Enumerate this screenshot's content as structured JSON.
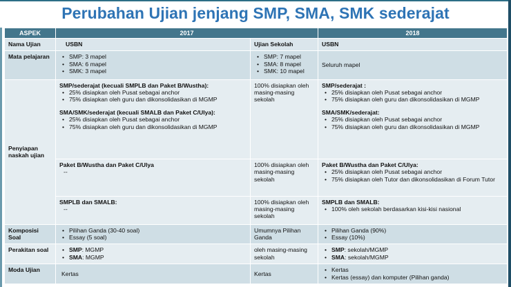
{
  "title": "Perubahan Ujian jenjang SMP, SMA, SMK sederajat",
  "header": {
    "aspek": "ASPEK",
    "y2017": "2017",
    "y2018": "2018"
  },
  "subheader": {
    "nama_ujian": "Nama Ujian",
    "usbn_2017": "USBN",
    "us_2017": "Ujian Sekolah",
    "usbn_2018": "USBN"
  },
  "mapel": {
    "label": "Mata pelajaran",
    "usbn_items": [
      "SMP: 3 mapel",
      "SMA: 6 mapel",
      "SMK: 3 mapel"
    ],
    "us_items": [
      "SMP: 7 mapel",
      "SMA: 8 mapel",
      "SMK: 10 mapel"
    ],
    "y2018": "Seluruh mapel"
  },
  "naskah": {
    "label": "Penyiapan naskah ujian",
    "block1": {
      "smp_title": "SMP/sederajat (kecuali SMPLB dan Paket B/Wustha):",
      "smp_items": [
        "25% disiapkan oleh Pusat sebagai anchor",
        "75% disiapkan oleh guru dan dikonsolidasikan di MGMP"
      ],
      "sma_title": "SMA/SMK/sederajat (kecuali SMALB dan Paket C/Ulya):",
      "sma_items": [
        "25% disiapkan oleh Pusat sebagai anchor",
        "75% disiapkan oleh guru dan dikonsolidasikan di MGMP"
      ],
      "us": "100% disiapkan oleh masing-masing sekolah",
      "y2018_smp_title": "SMP/sederajat :",
      "y2018_smp_items": [
        "25% disiapkan oleh Pusat sebagai anchor",
        "75% disiapkan oleh guru dan dikonsolidasikan di MGMP"
      ],
      "y2018_sma_title": "SMA/SMK/sederajat:",
      "y2018_sma_items": [
        "25% disiapkan oleh Pusat sebagai anchor",
        "75% disiapkan oleh guru dan dikonsolidasikan di MGMP"
      ]
    },
    "block2": {
      "title": "Paket B/Wustha dan Paket C/Ulya",
      "dash": "--",
      "us": "100% disiapkan oleh masing-masing sekolah",
      "y2018_title": "Paket B/Wustha dan Paket C/Ulya:",
      "y2018_items": [
        "25% disiapkan oleh Pusat sebagai anchor",
        "75% disiapkan oleh Tutor dan dikonsolidasikan di Forum Tutor"
      ]
    },
    "block3": {
      "title": "SMPLB dan SMALB:",
      "dash": "--",
      "us": "100% disiapkan oleh masing-masing sekolah",
      "y2018_title": "SMPLB dan SMALB:",
      "y2018_items": [
        "100% oleh sekolah berdasarkan kisi-kisi nasional"
      ]
    }
  },
  "komposisi": {
    "label": "Komposisi Soal",
    "usbn_items": [
      "Pilihan Ganda (30-40 soal)",
      "Essay (5 soal)"
    ],
    "us": "Umumnya Pilihan Ganda",
    "y2018_items": [
      "Pilihan Ganda  (90%)",
      "Essay (10%)"
    ]
  },
  "perakitan": {
    "label": "Perakitan soal",
    "usbn_items": [
      {
        "b": "SMP",
        "t": ": MGMP"
      },
      {
        "b": "SMA",
        "t": ": MGMP"
      }
    ],
    "us": "oleh masing-masing sekolah",
    "y2018_items": [
      {
        "b": "SMP",
        "t": ": sekolah/MGMP"
      },
      {
        "b": "SMA",
        "t": ": sekolah/MGMP"
      }
    ]
  },
  "moda": {
    "label": "Moda Ujian",
    "usbn": "Kertas",
    "us": "Kertas",
    "y2018_items": [
      "Kertas",
      "Kertas (essay) dan komputer (Pilihan ganda)"
    ]
  }
}
